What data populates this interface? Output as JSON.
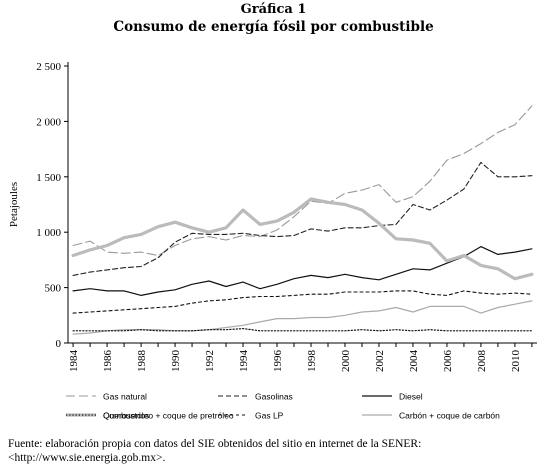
{
  "figure": {
    "label": "Gráfica 1",
    "title": "Consumo de energía fósil por combustible",
    "source": "Fuente: elaboración propia con datos del SIE obtenidos del sitio en internet de la SENER: <http://www.sie.energia.gob.mx>."
  },
  "chart_data": {
    "type": "line",
    "ylabel": "Petajoules",
    "xlabel": "",
    "ylim": [
      0,
      2500
    ],
    "yticks": [
      0,
      500,
      1000,
      1500,
      2000,
      2500
    ],
    "ytick_labels": [
      "0",
      "500",
      "1 000",
      "1 500",
      "2 000",
      "2 500"
    ],
    "xticks": [
      1984,
      1986,
      1988,
      1990,
      1992,
      1994,
      1996,
      1998,
      2000,
      2002,
      2004,
      2006,
      2008,
      2010
    ],
    "grid": false,
    "legend_position": "bottom",
    "x": [
      1984,
      1985,
      1986,
      1987,
      1988,
      1989,
      1990,
      1991,
      1992,
      1993,
      1994,
      1995,
      1996,
      1997,
      1998,
      1999,
      2000,
      2001,
      2002,
      2003,
      2004,
      2005,
      2006,
      2007,
      2008,
      2009,
      2010,
      2011
    ],
    "series": [
      {
        "name": "Gas natural",
        "style": "longdash",
        "color": "#999999",
        "values": [
          880,
          920,
          820,
          810,
          820,
          790,
          880,
          940,
          960,
          930,
          970,
          960,
          1020,
          1140,
          1280,
          1260,
          1350,
          1380,
          1430,
          1270,
          1320,
          1460,
          1650,
          1710,
          1800,
          1900,
          1970,
          2140
        ]
      },
      {
        "name": "Gasolinas",
        "style": "dash",
        "color": "#222222",
        "values": [
          610,
          640,
          660,
          680,
          690,
          770,
          910,
          990,
          980,
          980,
          990,
          970,
          960,
          970,
          1030,
          1010,
          1040,
          1040,
          1060,
          1070,
          1250,
          1200,
          1290,
          1390,
          1630,
          1500,
          1500,
          1510
        ]
      },
      {
        "name": "Diesel",
        "style": "solid",
        "color": "#111111",
        "values": [
          470,
          490,
          470,
          470,
          430,
          460,
          480,
          530,
          560,
          510,
          550,
          490,
          530,
          580,
          610,
          590,
          620,
          590,
          570,
          620,
          670,
          660,
          720,
          780,
          870,
          800,
          820,
          850
        ]
      },
      {
        "name": "Combustóleo + coque de pretróleo",
        "style": "thick",
        "color": "#bbbbbb",
        "values": [
          790,
          840,
          880,
          950,
          980,
          1050,
          1090,
          1040,
          1000,
          1040,
          1200,
          1070,
          1100,
          1180,
          1300,
          1270,
          1250,
          1200,
          1080,
          940,
          930,
          900,
          740,
          790,
          700,
          670,
          580,
          620
        ]
      },
      {
        "name": "Gas LP",
        "style": "shortdash",
        "color": "#111111",
        "values": [
          270,
          280,
          290,
          300,
          310,
          320,
          330,
          360,
          380,
          390,
          410,
          420,
          420,
          430,
          440,
          440,
          460,
          460,
          460,
          470,
          470,
          440,
          430,
          470,
          450,
          440,
          450,
          440
        ]
      },
      {
        "name": "Carbón + coque de carbón",
        "style": "solid",
        "color": "#aaaaaa",
        "values": [
          80,
          90,
          110,
          120,
          120,
          120,
          110,
          110,
          120,
          140,
          160,
          190,
          220,
          220,
          230,
          230,
          250,
          280,
          290,
          320,
          280,
          330,
          330,
          330,
          270,
          320,
          350,
          380
        ]
      },
      {
        "name": "Querosenos",
        "style": "dot",
        "color": "#111111",
        "values": [
          110,
          110,
          110,
          110,
          120,
          110,
          110,
          110,
          120,
          120,
          130,
          110,
          110,
          110,
          110,
          110,
          110,
          120,
          110,
          120,
          110,
          120,
          110,
          110,
          110,
          110,
          110,
          110
        ]
      }
    ]
  }
}
